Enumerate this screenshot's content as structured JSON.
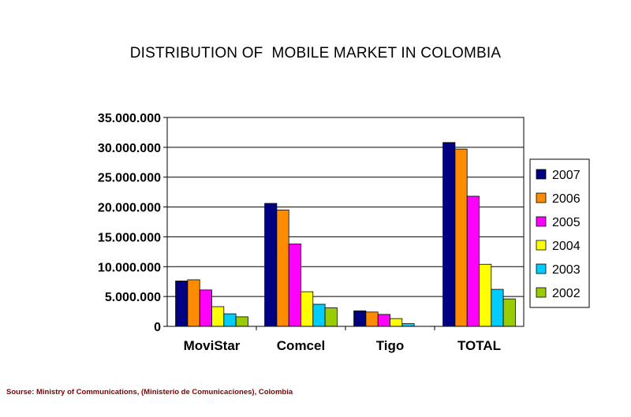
{
  "source_note": "Sourse: Ministry of Communications, (Ministerio de Comunicaciones), Colombia",
  "colors": {
    "2007": "#000080",
    "2006": "#FF8C00",
    "2005": "#FF00FF",
    "2004": "#FFFF00",
    "2003": "#00CCFF",
    "2002": "#99CC00"
  },
  "chart_data": {
    "type": "bar",
    "title": "DISTRIBUTION OF  MOBILE MARKET IN COLOMBIA",
    "xlabel": "",
    "ylabel": "",
    "categories": [
      "MoviStar",
      "Comcel",
      "Tigo",
      "TOTAL"
    ],
    "ylim": [
      0,
      35000000
    ],
    "yticks": [
      0,
      5000000,
      10000000,
      15000000,
      20000000,
      25000000,
      30000000,
      35000000
    ],
    "ytick_labels": [
      "0",
      "5.000.000",
      "10.000.000",
      "15.000.000",
      "20.000.000",
      "25.000.000",
      "30.000.000",
      "35.000.000"
    ],
    "grid": true,
    "legend_position": "right",
    "series": [
      {
        "name": "2007",
        "color": "#000080",
        "values": [
          7600000,
          20600000,
          2600000,
          30800000
        ]
      },
      {
        "name": "2006",
        "color": "#FF8C00",
        "values": [
          7800000,
          19500000,
          2400000,
          29700000
        ]
      },
      {
        "name": "2005",
        "color": "#FF00FF",
        "values": [
          6100000,
          13800000,
          2000000,
          21800000
        ]
      },
      {
        "name": "2004",
        "color": "#FFFF00",
        "values": [
          3300000,
          5800000,
          1300000,
          10400000
        ]
      },
      {
        "name": "2003",
        "color": "#00CCFF",
        "values": [
          2100000,
          3700000,
          450000,
          6200000
        ]
      },
      {
        "name": "2002",
        "color": "#99CC00",
        "values": [
          1600000,
          3100000,
          0,
          4600000
        ]
      }
    ]
  }
}
